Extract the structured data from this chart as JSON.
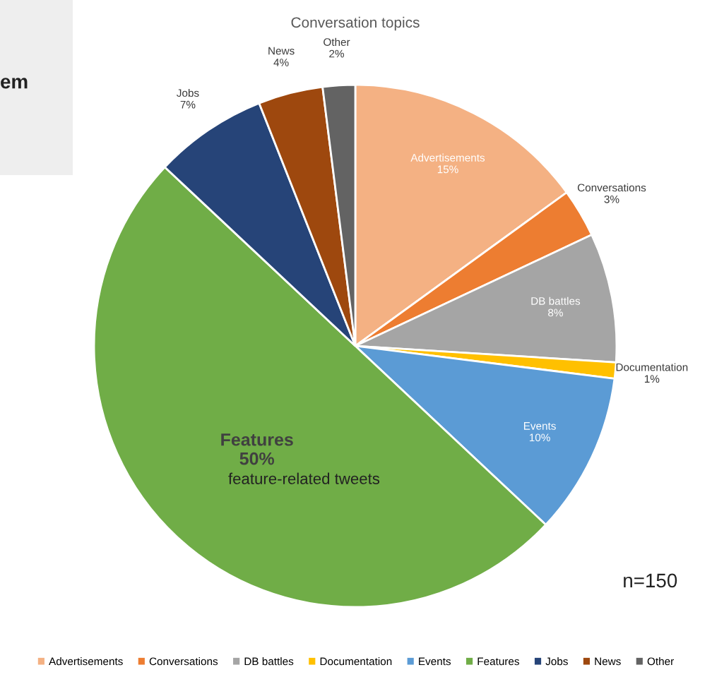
{
  "chart_data": {
    "type": "pie",
    "title": "Conversation topics",
    "categories": [
      "Advertisements",
      "Conversations",
      "DB battles",
      "Documentation",
      "Events",
      "Features",
      "Jobs",
      "News",
      "Other"
    ],
    "values": [
      15,
      3,
      8,
      1,
      10,
      50,
      7,
      4,
      2
    ],
    "value_labels": [
      "15%",
      "3%",
      "8%",
      "1%",
      "10%",
      "50%",
      "7%",
      "4%",
      "2%"
    ],
    "colors": [
      "#f4b183",
      "#ed7d31",
      "#a5a5a5",
      "#ffc000",
      "#5b9bd5",
      "#70ad47",
      "#264478",
      "#9e480e",
      "#636363"
    ],
    "legend": "bottom",
    "annotations": [
      "em",
      "feature-related tweets",
      "n=150"
    ]
  }
}
